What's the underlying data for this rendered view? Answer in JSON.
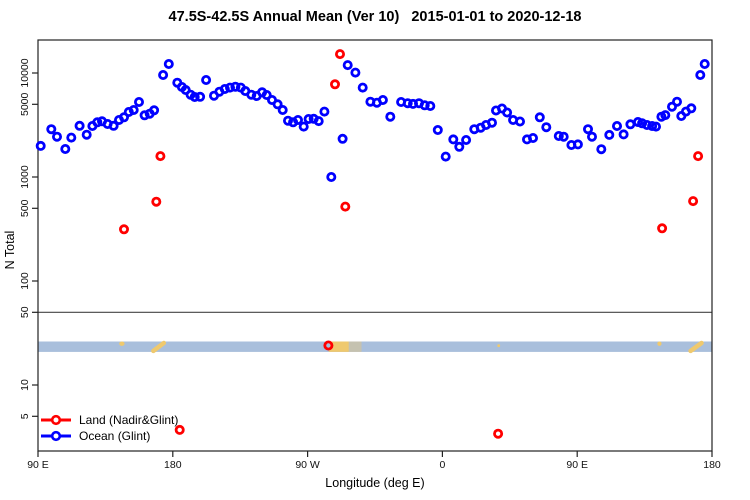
{
  "title": "47.5S-42.5S Annual Mean (Ver 10)   2015-01-01 to 2020-12-18",
  "chart_data": {
    "type": "scatter",
    "title": "47.5S-42.5S Annual Mean (Ver 10)   2015-01-01 to 2020-12-18",
    "xlabel": "Longitude (deg E)",
    "ylabel": "N Total",
    "x_axis": {
      "unit": "degrees east, wrapping 90E through 180 back to 180",
      "range": [
        90,
        540
      ],
      "ticks": [
        90,
        180,
        270,
        360,
        450,
        540
      ],
      "tick_labels": [
        "90 E",
        "180",
        "90 W",
        "0",
        "90 E",
        "180"
      ]
    },
    "y_axis": {
      "scale": "log10",
      "ylim": [
        2.3,
        20700
      ],
      "ticks": [
        10000,
        5000,
        1000,
        500,
        100,
        50,
        10,
        5
      ],
      "tick_labels": [
        "10000",
        "5000",
        "1000",
        "500",
        "100",
        "50",
        "10",
        "5"
      ],
      "tick_labels_rotated": true
    },
    "grid": false,
    "reference_line_value": 50,
    "land_ocean_band": {
      "note": "map strip of the 47.5S-42.5S latitude band drawn across the plot",
      "value_top": 26.2,
      "value_bottom": 20.8,
      "ocean_color": "#A9BFDC",
      "land_color": "#EFC96E",
      "land_patches": [
        {
          "name": "tasmania",
          "lon": [
            144.2,
            147.8
          ],
          "shape": "dot-top"
        },
        {
          "name": "new-zealand",
          "lon": [
            166.0,
            175.0
          ],
          "shape": "slash"
        },
        {
          "name": "south-america",
          "lon": [
            284.0,
            297.5
          ],
          "shape": "block"
        },
        {
          "name": "south-america-coast",
          "lon": [
            297.5,
            306.0
          ],
          "shape": "block-light"
        },
        {
          "name": "marion-island",
          "lon": [
            396.8,
            398.4
          ],
          "shape": "dot-mid"
        },
        {
          "name": "tasmania-repeat",
          "lon": [
            503.5,
            506.3
          ],
          "shape": "dot-top"
        },
        {
          "name": "new-zealand-repeat",
          "lon": [
            524.7,
            534.0
          ],
          "shape": "slash"
        }
      ]
    },
    "series": [
      {
        "name": "Land (Nadir&Glint)",
        "color": "#FF0000",
        "points": [
          [
            147.4,
            314
          ],
          [
            169.0,
            579
          ],
          [
            171.7,
            1590
          ],
          [
            184.6,
            3.7
          ],
          [
            283.9,
            24
          ],
          [
            288.3,
            7780
          ],
          [
            291.6,
            15200
          ],
          [
            295.2,
            519
          ],
          [
            397.2,
            3.4
          ],
          [
            506.7,
            321
          ],
          [
            527.4,
            587
          ],
          [
            530.7,
            1590
          ]
        ]
      },
      {
        "name": "Ocean (Glint)",
        "color": "#0000FF",
        "points": [
          [
            91.8,
            1990
          ],
          [
            98.9,
            2880
          ],
          [
            102.7,
            2440
          ],
          [
            108.2,
            1860
          ],
          [
            112.2,
            2390
          ],
          [
            117.8,
            3110
          ],
          [
            122.5,
            2550
          ],
          [
            126.3,
            3090
          ],
          [
            129.6,
            3360
          ],
          [
            132.7,
            3430
          ],
          [
            136.5,
            3230
          ],
          [
            140.5,
            3110
          ],
          [
            144.1,
            3530
          ],
          [
            147.4,
            3750
          ],
          [
            150.6,
            4220
          ],
          [
            153.9,
            4410
          ],
          [
            157.4,
            5260
          ],
          [
            161.2,
            3920
          ],
          [
            164.6,
            4060
          ],
          [
            167.5,
            4380
          ],
          [
            173.5,
            9570
          ],
          [
            177.3,
            12200
          ],
          [
            183.0,
            8070
          ],
          [
            186.1,
            7330
          ],
          [
            188.6,
            6870
          ],
          [
            191.9,
            6180
          ],
          [
            194.6,
            5880
          ],
          [
            198.2,
            5900
          ],
          [
            202.2,
            8570
          ],
          [
            207.5,
            6050
          ],
          [
            211.1,
            6610
          ],
          [
            214.7,
            7020
          ],
          [
            218.2,
            7230
          ],
          [
            221.8,
            7380
          ],
          [
            225.4,
            7230
          ],
          [
            228.4,
            6710
          ],
          [
            232.4,
            6180
          ],
          [
            236.0,
            6010
          ],
          [
            239.6,
            6520
          ],
          [
            242.7,
            6140
          ],
          [
            246.2,
            5500
          ],
          [
            250.0,
            5000
          ],
          [
            253.4,
            4410
          ],
          [
            256.9,
            3480
          ],
          [
            260.3,
            3360
          ],
          [
            263.6,
            3530
          ],
          [
            267.4,
            3050
          ],
          [
            270.7,
            3610
          ],
          [
            274.1,
            3630
          ],
          [
            277.4,
            3450
          ],
          [
            281.2,
            4250
          ],
          [
            285.8,
            1000
          ],
          [
            293.4,
            2330
          ],
          [
            296.8,
            11900
          ],
          [
            301.9,
            10100
          ],
          [
            306.8,
            7230
          ],
          [
            311.9,
            5300
          ],
          [
            316.3,
            5180
          ],
          [
            320.3,
            5500
          ],
          [
            325.2,
            3800
          ],
          [
            332.4,
            5260
          ],
          [
            336.8,
            5120
          ],
          [
            340.4,
            5040
          ],
          [
            344.4,
            5120
          ],
          [
            348.2,
            4890
          ],
          [
            351.9,
            4820
          ],
          [
            356.9,
            2830
          ],
          [
            362.2,
            1570
          ],
          [
            367.3,
            2300
          ],
          [
            371.3,
            1950
          ],
          [
            375.8,
            2270
          ],
          [
            381.3,
            2880
          ],
          [
            385.6,
            2980
          ],
          [
            389.1,
            3160
          ],
          [
            393.1,
            3330
          ],
          [
            395.8,
            4360
          ],
          [
            399.8,
            4560
          ],
          [
            403.2,
            4170
          ],
          [
            407.2,
            3530
          ],
          [
            411.8,
            3420
          ],
          [
            416.5,
            2300
          ],
          [
            420.5,
            2370
          ],
          [
            425.0,
            3750
          ],
          [
            429.4,
            3010
          ],
          [
            437.7,
            2480
          ],
          [
            441.0,
            2440
          ],
          [
            446.1,
            2030
          ],
          [
            450.5,
            2060
          ],
          [
            457.2,
            2880
          ],
          [
            459.9,
            2440
          ],
          [
            466.1,
            1850
          ],
          [
            471.4,
            2540
          ],
          [
            476.6,
            3090
          ],
          [
            481.0,
            2570
          ],
          [
            485.5,
            3210
          ],
          [
            490.6,
            3380
          ],
          [
            493.3,
            3280
          ],
          [
            496.6,
            3160
          ],
          [
            500.0,
            3090
          ],
          [
            502.6,
            3050
          ],
          [
            506.2,
            3800
          ],
          [
            508.8,
            3940
          ],
          [
            513.3,
            4740
          ],
          [
            516.6,
            5300
          ],
          [
            519.5,
            3860
          ],
          [
            522.6,
            4250
          ],
          [
            526.2,
            4580
          ],
          [
            532.2,
            9570
          ],
          [
            535.1,
            12200
          ]
        ]
      }
    ],
    "legend_position": "bottom-left-inside"
  },
  "legend": {
    "items": [
      {
        "label": "Land (Nadir&Glint)",
        "color": "#FF0000"
      },
      {
        "label": "Ocean (Glint)",
        "color": "#0000FF"
      }
    ]
  },
  "colors": {
    "land_series": "#FF0000",
    "ocean_series": "#0000FF",
    "band_ocean": "#A9BFDC",
    "band_land": "#EFC96E",
    "axis": "#222222"
  }
}
